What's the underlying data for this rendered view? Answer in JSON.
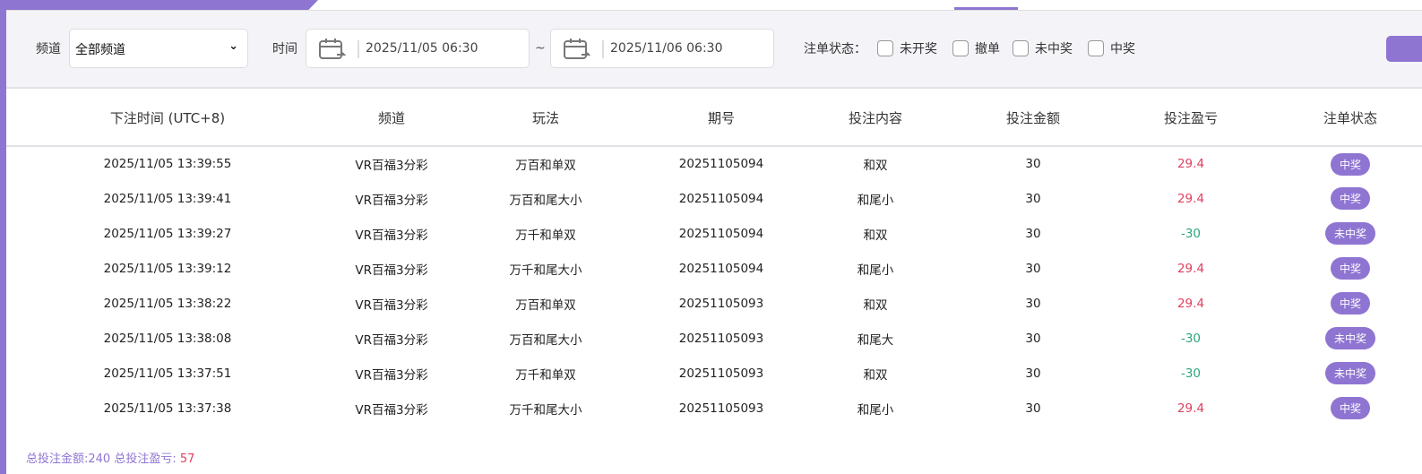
{
  "filters": {
    "channel_label": "频道",
    "channel_value": "全部频道",
    "time_label": "时间",
    "start": "2025/11/05 06:30",
    "tilde": "~",
    "end": "2025/11/06 06:30",
    "status_label": "注单状态：",
    "statuses": [
      "未开奖",
      "撤单",
      "未中奖",
      "中奖"
    ]
  },
  "table": {
    "headers": [
      "下注时间 (UTC+8)",
      "频道",
      "玩法",
      "期号",
      "投注内容",
      "投注金额",
      "投注盈亏",
      "注单状态"
    ],
    "rows": [
      [
        "2025/11/05 13:39:55",
        "VR百福3分彩",
        "万百和单双",
        "20251105094",
        "和双",
        "30",
        "29.4",
        "中奖"
      ],
      [
        "2025/11/05 13:39:41",
        "VR百福3分彩",
        "万百和尾大小",
        "20251105094",
        "和尾小",
        "30",
        "29.4",
        "中奖"
      ],
      [
        "2025/11/05 13:39:27",
        "VR百福3分彩",
        "万千和单双",
        "20251105094",
        "和双",
        "30",
        "-30",
        "未中奖"
      ],
      [
        "2025/11/05 13:39:12",
        "VR百福3分彩",
        "万千和尾大小",
        "20251105094",
        "和尾小",
        "30",
        "29.4",
        "中奖"
      ],
      [
        "2025/11/05 13:38:22",
        "VR百福3分彩",
        "万百和单双",
        "20251105093",
        "和双",
        "30",
        "29.4",
        "中奖"
      ],
      [
        "2025/11/05 13:38:08",
        "VR百福3分彩",
        "万百和尾大小",
        "20251105093",
        "和尾大",
        "30",
        "-30",
        "未中奖"
      ],
      [
        "2025/11/05 13:37:51",
        "VR百福3分彩",
        "万千和单双",
        "20251105093",
        "和双",
        "30",
        "-30",
        "未中奖"
      ],
      [
        "2025/11/05 13:37:38",
        "VR百福3分彩",
        "万千和尾大小",
        "20251105093",
        "和尾小",
        "30",
        "29.4",
        "中奖"
      ]
    ]
  },
  "summary": {
    "text": "总投注金额:240 总投注盈亏: ",
    "profit": "57"
  },
  "colors": {
    "accent": "#8f75d2",
    "profit": "#e0405f",
    "loss": "#2aa57a"
  }
}
